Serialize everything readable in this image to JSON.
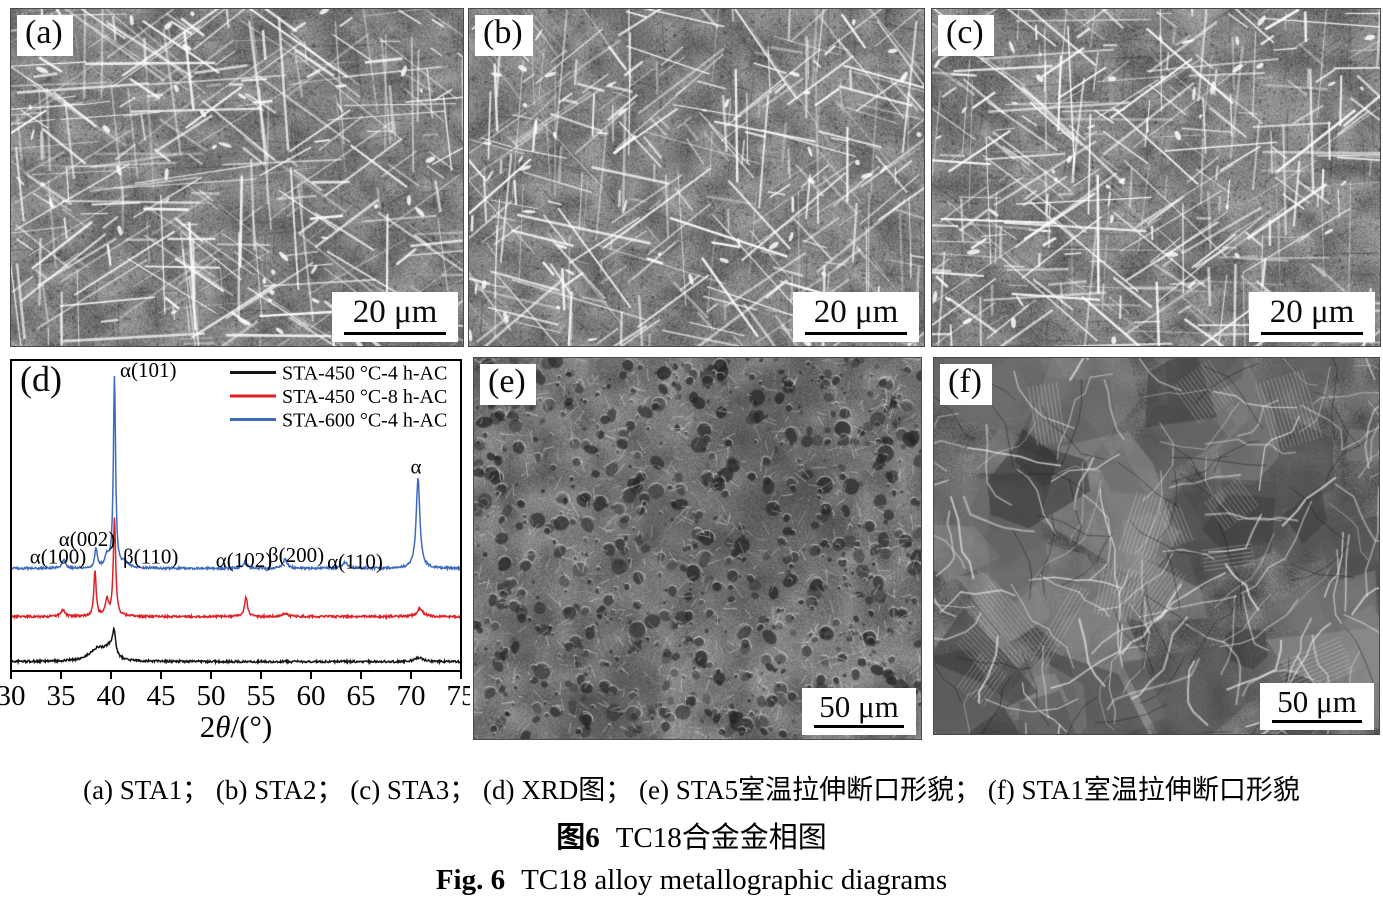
{
  "figure": {
    "background": "#ffffff",
    "kind": "journal-figure-multi-panel"
  },
  "panels": {
    "a": {
      "label": "(a)",
      "scale_bar": "20 μm",
      "texture": "acicular",
      "content": "optical micrograph, acicular alpha laths"
    },
    "b": {
      "label": "(b)",
      "scale_bar": "20 μm",
      "texture": "acicular",
      "content": "optical micrograph, acicular alpha laths"
    },
    "c": {
      "label": "(c)",
      "scale_bar": "20 μm",
      "texture": "acicular",
      "content": "optical micrograph, acicular alpha laths"
    },
    "e": {
      "label": "(e)",
      "scale_bar": "50 μm",
      "texture": "dimple",
      "content": "SEM tensile fracture surface with dimples"
    },
    "f": {
      "label": "(f)",
      "scale_bar": "50 μm",
      "texture": "fracture",
      "content": "SEM tensile fracture surface, quasi-cleavage facets"
    }
  },
  "chart_data": {
    "type": "line",
    "panel_label": "(d)",
    "title": "",
    "xlabel": "2θ/(°)",
    "ylabel": "",
    "xlim": [
      30,
      75
    ],
    "xticks": [
      30,
      35,
      40,
      45,
      50,
      55,
      60,
      65,
      70,
      75
    ],
    "grid": false,
    "legend_position": "top-right",
    "y_units": "relative intensity (stacked, fraction of plot height)",
    "series": [
      {
        "name": "STA-450 °C-4 h-AC",
        "color": "#151515",
        "offset": 0.03,
        "peaks": [
          [
            38.7,
            0.042,
            1.0
          ],
          [
            39.8,
            0.03,
            0.45
          ],
          [
            40.3,
            0.08,
            0.2
          ],
          [
            70.8,
            0.013,
            0.5
          ]
        ]
      },
      {
        "name": "STA-450 °C-8 h-AC",
        "color": "#e01f26",
        "offset": 0.175,
        "peaks": [
          [
            35.2,
            0.022,
            0.22
          ],
          [
            38.4,
            0.145,
            0.14
          ],
          [
            39.6,
            0.052,
            0.18
          ],
          [
            40.35,
            0.315,
            0.14
          ],
          [
            53.5,
            0.065,
            0.17
          ],
          [
            57.4,
            0.01,
            0.3
          ],
          [
            70.9,
            0.026,
            0.35
          ]
        ]
      },
      {
        "name": "STA-600 °C-4 h-AC",
        "color": "#3f6bbd",
        "offset": 0.33,
        "peaks": [
          [
            35.3,
            0.027,
            0.22
          ],
          [
            38.5,
            0.062,
            0.15
          ],
          [
            39.6,
            0.035,
            0.25
          ],
          [
            40.35,
            0.615,
            0.13
          ],
          [
            41.4,
            0.018,
            0.4
          ],
          [
            53.4,
            0.018,
            0.25
          ],
          [
            57.4,
            0.03,
            0.25
          ],
          [
            63.4,
            0.02,
            0.3
          ],
          [
            70.7,
            0.29,
            0.22
          ]
        ]
      }
    ],
    "annotations": [
      {
        "text": "α(100)",
        "x": 34.7,
        "yfrac": 0.345,
        "anchor": "middle"
      },
      {
        "text": "α(002)",
        "x": 37.6,
        "yfrac": 0.402,
        "anchor": "middle"
      },
      {
        "text": "α(101)",
        "x": 40.9,
        "yfrac": 0.945,
        "anchor": "start"
      },
      {
        "text": "β(110)",
        "x": 41.2,
        "yfrac": 0.345,
        "anchor": "start"
      },
      {
        "text": "α(102)",
        "x": 53.3,
        "yfrac": 0.335,
        "anchor": "middle"
      },
      {
        "text": "β(200)",
        "x": 58.5,
        "yfrac": 0.35,
        "anchor": "middle"
      },
      {
        "text": "α(110)",
        "x": 64.4,
        "yfrac": 0.33,
        "anchor": "middle"
      },
      {
        "text": "α",
        "x": 70.5,
        "yfrac": 0.635,
        "anchor": "middle"
      }
    ]
  },
  "captions": {
    "line1": "(a) STA1； (b) STA2； (c) STA3； (d) XRD图； (e) STA5室温拉伸断口形貌； (f) STA1室温拉伸断口形貌",
    "line2_prefix": "图6",
    "line2_text": "TC18合金金相图",
    "line3_prefix": "Fig. 6",
    "line3_text": "TC18 alloy metallographic diagrams"
  }
}
